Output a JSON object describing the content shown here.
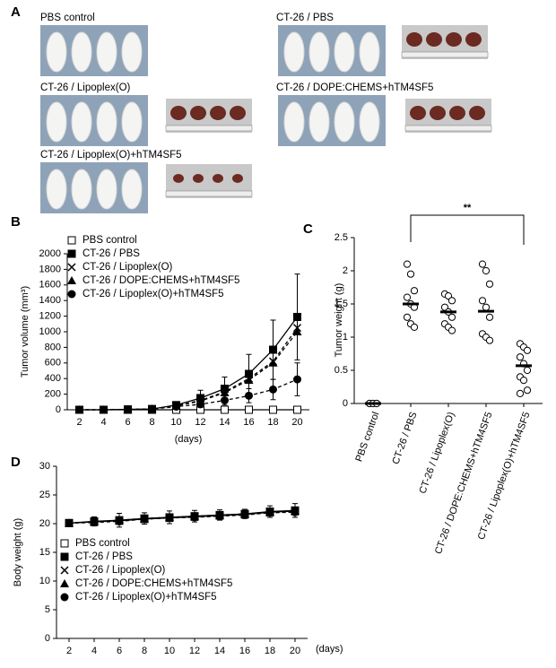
{
  "panel_labels": [
    "A",
    "B",
    "C",
    "D"
  ],
  "panel_a": {
    "captions": [
      "PBS control",
      "CT-26 / PBS",
      "CT-26 / Lipoplex(O)",
      "CT-26 / DOPE:CHEMS+hTM4SF5",
      "CT-26 / Lipoplex(O)+hTM4SF5"
    ]
  },
  "chart_data": [
    {
      "type": "line",
      "xlabel": "(days)",
      "ylabel": "Tumor volume (mm³)",
      "x": [
        2,
        4,
        6,
        8,
        10,
        12,
        14,
        16,
        18,
        20
      ],
      "xlim": [
        1,
        21
      ],
      "xticks": [
        2,
        4,
        6,
        8,
        10,
        12,
        14,
        16,
        18,
        20
      ],
      "ylim": [
        0,
        2000
      ],
      "yticks": [
        0,
        200,
        400,
        600,
        800,
        1000,
        1200,
        1400,
        1600,
        1800,
        2000
      ],
      "legend": "upper left",
      "series": [
        {
          "name": "PBS control",
          "color": "#000000",
          "marker": "square-open",
          "dashed": false,
          "values": [
            0,
            0,
            0,
            0,
            0,
            0,
            0,
            0,
            0,
            0
          ]
        },
        {
          "name": "CT-26 / PBS",
          "color": "#000000",
          "marker": "square-filled",
          "dashed": false,
          "values": [
            0,
            0,
            5,
            10,
            60,
            150,
            270,
            460,
            770,
            1190
          ],
          "errors": [
            0,
            0,
            5,
            10,
            30,
            100,
            150,
            250,
            380,
            550
          ]
        },
        {
          "name": "CT-26 / Lipoplex(O)",
          "color": "#000000",
          "marker": "x",
          "dashed": true,
          "values": [
            0,
            0,
            5,
            10,
            50,
            120,
            230,
            400,
            620,
            1050
          ]
        },
        {
          "name": "CT-26 / DOPE:CHEMS+hTM4SF5",
          "color": "#000000",
          "marker": "triangle-filled",
          "dashed": true,
          "values": [
            0,
            0,
            5,
            10,
            50,
            110,
            220,
            380,
            600,
            1000
          ]
        },
        {
          "name": "CT-26 / Lipoplex(O)+hTM4SF5",
          "color": "#000000",
          "marker": "circle-filled",
          "dashed": true,
          "values": [
            0,
            0,
            5,
            10,
            40,
            70,
            120,
            180,
            260,
            390
          ],
          "errors": [
            0,
            0,
            5,
            10,
            20,
            40,
            60,
            90,
            130,
            210
          ]
        }
      ]
    },
    {
      "type": "strip",
      "ylabel": "Tumor weight (g)",
      "annotation": "**",
      "categories": [
        "PBS control",
        "CT-26 / PBS",
        "CT-26 / Lipoplex(O)",
        "CT-26 / DOPE:CHEMS+hTM4SF5",
        "CT-26 / Lipoplex(O)+hTM4SF5"
      ],
      "ylim": [
        0,
        2.5
      ],
      "yticks": [
        0,
        0.5,
        1,
        1.5,
        2,
        2.5
      ],
      "values": [
        [
          0,
          0,
          0,
          0,
          0,
          0
        ],
        [
          2.1,
          1.95,
          1.7,
          1.6,
          1.5,
          1.45,
          1.3,
          1.2,
          1.15
        ],
        [
          1.65,
          1.62,
          1.55,
          1.45,
          1.38,
          1.3,
          1.2,
          1.15,
          1.1
        ],
        [
          2.1,
          2.0,
          1.8,
          1.55,
          1.45,
          1.3,
          1.05,
          1.0,
          0.95
        ],
        [
          0.9,
          0.85,
          0.8,
          0.7,
          0.6,
          0.5,
          0.4,
          0.35,
          0.2,
          0.15
        ]
      ],
      "means": [
        0,
        1.5,
        1.38,
        1.39,
        0.57
      ],
      "color": "#000000"
    },
    {
      "type": "line",
      "xlabel": "(days)",
      "ylabel": "Body weight (g)",
      "x": [
        2,
        4,
        6,
        8,
        10,
        12,
        14,
        16,
        18,
        20
      ],
      "xlim": [
        1,
        21
      ],
      "xticks": [
        2,
        4,
        6,
        8,
        10,
        12,
        14,
        16,
        18,
        20
      ],
      "ylim": [
        0,
        30
      ],
      "yticks": [
        0,
        5,
        10,
        15,
        20,
        25,
        30
      ],
      "legend": "lower left",
      "series": [
        {
          "name": "PBS control",
          "color": "#000000",
          "marker": "square-open",
          "dashed": false,
          "values": [
            20.1,
            20.3,
            20.5,
            20.8,
            21,
            21.2,
            21.4,
            21.6,
            22,
            22.2
          ]
        },
        {
          "name": "CT-26 / PBS",
          "color": "#000000",
          "marker": "square-filled",
          "dashed": false,
          "values": [
            20.1,
            20.4,
            20.6,
            20.9,
            21.1,
            21.3,
            21.5,
            21.7,
            22.1,
            22.3
          ],
          "errors": [
            0.5,
            0.8,
            1.2,
            1,
            1.1,
            1,
            0.9,
            0.8,
            1,
            1.2
          ]
        },
        {
          "name": "CT-26 / Lipoplex(O)",
          "color": "#000000",
          "marker": "x",
          "dashed": true,
          "values": [
            20.1,
            20.3,
            20.5,
            20.8,
            21,
            21.2,
            21.4,
            21.6,
            21.9,
            22.1
          ]
        },
        {
          "name": "CT-26 / DOPE:CHEMS+hTM4SF5",
          "color": "#000000",
          "marker": "triangle-filled",
          "dashed": true,
          "values": [
            20.1,
            20.3,
            20.6,
            20.9,
            21.1,
            21.3,
            21.5,
            21.7,
            22,
            22.2
          ]
        },
        {
          "name": "CT-26 / Lipoplex(O)+hTM4SF5",
          "color": "#000000",
          "marker": "circle-filled",
          "dashed": true,
          "values": [
            20.1,
            20.2,
            20.4,
            20.8,
            21,
            21.1,
            21.3,
            21.5,
            21.9,
            22
          ]
        }
      ]
    }
  ]
}
